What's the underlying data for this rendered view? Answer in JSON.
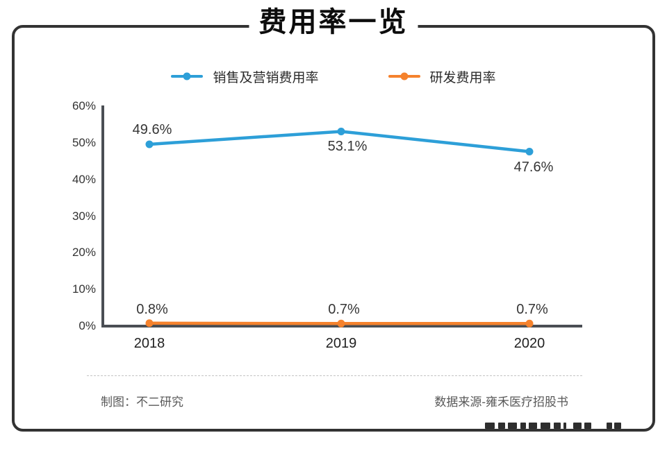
{
  "title": "费用率一览",
  "chart_data": {
    "type": "line",
    "title": "费用率一览",
    "categories": [
      "2018",
      "2019",
      "2020"
    ],
    "series": [
      {
        "name": "销售及营销费用率",
        "color": "#2d9fd8",
        "values": [
          49.6,
          53.1,
          47.6
        ],
        "point_labels": [
          "49.6%",
          "53.1%",
          "47.6%"
        ]
      },
      {
        "name": "研发费用率",
        "color": "#f5822d",
        "values": [
          0.8,
          0.7,
          0.7
        ],
        "point_labels": [
          "0.8%",
          "0.7%",
          "0.7%"
        ]
      }
    ],
    "ylim": [
      0,
      60
    ],
    "yticks": [
      "0%",
      "10%",
      "20%",
      "30%",
      "40%",
      "50%",
      "60%"
    ],
    "xlabel": "",
    "ylabel": "",
    "grid": false,
    "legend_position": "top-center"
  },
  "footer": {
    "credit": "制图：不二研究",
    "source": "数据来源-雍禾医疗招股书"
  },
  "colors": {
    "card_border": "#333333",
    "axis": "#4a4e54",
    "series_blue": "#2d9fd8",
    "series_orange": "#f5822d",
    "footer_text": "#595959"
  }
}
